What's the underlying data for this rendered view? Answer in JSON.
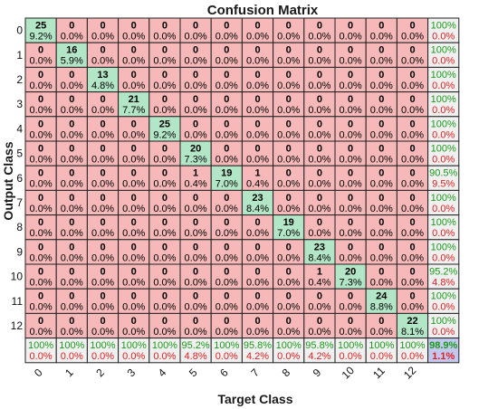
{
  "chart_data": {
    "type": "heatmap",
    "title": "Confusion Matrix",
    "xlabel": "Target Class",
    "ylabel": "Output Class",
    "classes": [
      "0",
      "1",
      "2",
      "3",
      "4",
      "5",
      "6",
      "7",
      "8",
      "9",
      "10",
      "11",
      "12"
    ],
    "matrix": [
      [
        25,
        0,
        0,
        0,
        0,
        0,
        0,
        0,
        0,
        0,
        0,
        0,
        0
      ],
      [
        0,
        16,
        0,
        0,
        0,
        0,
        0,
        0,
        0,
        0,
        0,
        0,
        0
      ],
      [
        0,
        0,
        13,
        0,
        0,
        0,
        0,
        0,
        0,
        0,
        0,
        0,
        0
      ],
      [
        0,
        0,
        0,
        21,
        0,
        0,
        0,
        0,
        0,
        0,
        0,
        0,
        0
      ],
      [
        0,
        0,
        0,
        0,
        25,
        0,
        0,
        0,
        0,
        0,
        0,
        0,
        0
      ],
      [
        0,
        0,
        0,
        0,
        0,
        20,
        0,
        0,
        0,
        0,
        0,
        0,
        0
      ],
      [
        0,
        0,
        0,
        0,
        0,
        1,
        19,
        1,
        0,
        0,
        0,
        0,
        0
      ],
      [
        0,
        0,
        0,
        0,
        0,
        0,
        0,
        23,
        0,
        0,
        0,
        0,
        0
      ],
      [
        0,
        0,
        0,
        0,
        0,
        0,
        0,
        0,
        19,
        0,
        0,
        0,
        0
      ],
      [
        0,
        0,
        0,
        0,
        0,
        0,
        0,
        0,
        0,
        23,
        0,
        0,
        0
      ],
      [
        0,
        0,
        0,
        0,
        0,
        0,
        0,
        0,
        0,
        1,
        20,
        0,
        0
      ],
      [
        0,
        0,
        0,
        0,
        0,
        0,
        0,
        0,
        0,
        0,
        0,
        24,
        0
      ],
      [
        0,
        0,
        0,
        0,
        0,
        0,
        0,
        0,
        0,
        0,
        0,
        0,
        22
      ]
    ],
    "percent_matrix": [
      [
        "9.2%",
        "0.0%",
        "0.0%",
        "0.0%",
        "0.0%",
        "0.0%",
        "0.0%",
        "0.0%",
        "0.0%",
        "0.0%",
        "0.0%",
        "0.0%",
        "0.0%"
      ],
      [
        "0.0%",
        "5.9%",
        "0.0%",
        "0.0%",
        "0.0%",
        "0.0%",
        "0.0%",
        "0.0%",
        "0.0%",
        "0.0%",
        "0.0%",
        "0.0%",
        "0.0%"
      ],
      [
        "0.0%",
        "0.0%",
        "4.8%",
        "0.0%",
        "0.0%",
        "0.0%",
        "0.0%",
        "0.0%",
        "0.0%",
        "0.0%",
        "0.0%",
        "0.0%",
        "0.0%"
      ],
      [
        "0.0%",
        "0.0%",
        "0.0%",
        "7.7%",
        "0.0%",
        "0.0%",
        "0.0%",
        "0.0%",
        "0.0%",
        "0.0%",
        "0.0%",
        "0.0%",
        "0.0%"
      ],
      [
        "0.0%",
        "0.0%",
        "0.0%",
        "0.0%",
        "9.2%",
        "0.0%",
        "0.0%",
        "0.0%",
        "0.0%",
        "0.0%",
        "0.0%",
        "0.0%",
        "0.0%"
      ],
      [
        "0.0%",
        "0.0%",
        "0.0%",
        "0.0%",
        "0.0%",
        "7.3%",
        "0.0%",
        "0.0%",
        "0.0%",
        "0.0%",
        "0.0%",
        "0.0%",
        "0.0%"
      ],
      [
        "0.0%",
        "0.0%",
        "0.0%",
        "0.0%",
        "0.0%",
        "0.4%",
        "7.0%",
        "0.4%",
        "0.0%",
        "0.0%",
        "0.0%",
        "0.0%",
        "0.0%"
      ],
      [
        "0.0%",
        "0.0%",
        "0.0%",
        "0.0%",
        "0.0%",
        "0.0%",
        "0.0%",
        "8.4%",
        "0.0%",
        "0.0%",
        "0.0%",
        "0.0%",
        "0.0%"
      ],
      [
        "0.0%",
        "0.0%",
        "0.0%",
        "0.0%",
        "0.0%",
        "0.0%",
        "0.0%",
        "0.0%",
        "7.0%",
        "0.0%",
        "0.0%",
        "0.0%",
        "0.0%"
      ],
      [
        "0.0%",
        "0.0%",
        "0.0%",
        "0.0%",
        "0.0%",
        "0.0%",
        "0.0%",
        "0.0%",
        "0.0%",
        "8.4%",
        "0.0%",
        "0.0%",
        "0.0%"
      ],
      [
        "0.0%",
        "0.0%",
        "0.0%",
        "0.0%",
        "0.0%",
        "0.0%",
        "0.0%",
        "0.0%",
        "0.0%",
        "0.4%",
        "7.3%",
        "0.0%",
        "0.0%"
      ],
      [
        "0.0%",
        "0.0%",
        "0.0%",
        "0.0%",
        "0.0%",
        "0.0%",
        "0.0%",
        "0.0%",
        "0.0%",
        "0.0%",
        "0.0%",
        "8.8%",
        "0.0%"
      ],
      [
        "0.0%",
        "0.0%",
        "0.0%",
        "0.0%",
        "0.0%",
        "0.0%",
        "0.0%",
        "0.0%",
        "0.0%",
        "0.0%",
        "0.0%",
        "0.0%",
        "8.1%"
      ]
    ],
    "row_summary": [
      [
        "100%",
        "0.0%"
      ],
      [
        "100%",
        "0.0%"
      ],
      [
        "100%",
        "0.0%"
      ],
      [
        "100%",
        "0.0%"
      ],
      [
        "100%",
        "0.0%"
      ],
      [
        "100%",
        "0.0%"
      ],
      [
        "90.5%",
        "9.5%"
      ],
      [
        "100%",
        "0.0%"
      ],
      [
        "100%",
        "0.0%"
      ],
      [
        "100%",
        "0.0%"
      ],
      [
        "95.2%",
        "4.8%"
      ],
      [
        "100%",
        "0.0%"
      ],
      [
        "100%",
        "0.0%"
      ]
    ],
    "col_summary": [
      [
        "100%",
        "0.0%"
      ],
      [
        "100%",
        "0.0%"
      ],
      [
        "100%",
        "0.0%"
      ],
      [
        "100%",
        "0.0%"
      ],
      [
        "100%",
        "0.0%"
      ],
      [
        "95.2%",
        "4.8%"
      ],
      [
        "100%",
        "0.0%"
      ],
      [
        "95.8%",
        "4.2%"
      ],
      [
        "100%",
        "0.0%"
      ],
      [
        "95.8%",
        "4.2%"
      ],
      [
        "100%",
        "0.0%"
      ],
      [
        "100%",
        "0.0%"
      ],
      [
        "100%",
        "0.0%"
      ]
    ],
    "overall": [
      "98.9%",
      "1.1%"
    ],
    "colors": {
      "diagonal": "#b3e6c7",
      "off_diagonal": "#f6b8b8",
      "summary": "#f0f0f0",
      "overall": "#c2c8ef",
      "good_text": "#1a9a1a",
      "bad_text": "#e02020"
    }
  }
}
